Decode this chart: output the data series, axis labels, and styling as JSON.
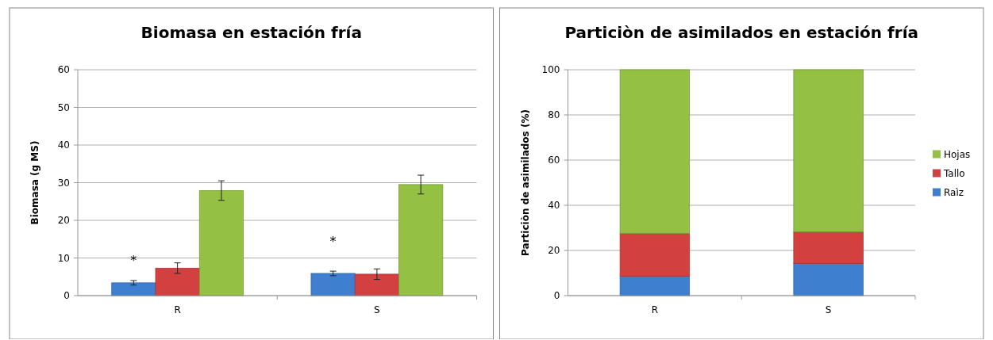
{
  "chart_data": [
    {
      "type": "bar",
      "title": "Biomasa en estación fría",
      "ylabel": "Biomasa (g MS)",
      "categories": [
        "R",
        "S"
      ],
      "series": [
        {
          "color": "#3f7fcf",
          "values": [
            3.4,
            5.9
          ],
          "errors": [
            0.6,
            0.6
          ]
        },
        {
          "color": "#d24040",
          "values": [
            7.3,
            5.7
          ],
          "errors": [
            1.4,
            1.4
          ]
        },
        {
          "color": "#94c044",
          "values": [
            27.9,
            29.5
          ],
          "errors": [
            2.6,
            2.5
          ]
        }
      ],
      "ylim": [
        0,
        60
      ],
      "yticks": [
        0,
        10,
        20,
        30,
        40,
        50,
        60
      ],
      "grid": "y",
      "legend": false,
      "annotations": [
        "*",
        "*"
      ]
    },
    {
      "type": "bar",
      "title": "Particiòn de asimilados en estación fría",
      "ylabel": "Particiòn de asimilados (%)",
      "categories": [
        "R",
        "S"
      ],
      "stacked": true,
      "series": [
        {
          "name": "Raìz",
          "color": "#3f7fcf",
          "values": [
            8.6,
            14.2
          ]
        },
        {
          "name": "Tallo",
          "color": "#d24040",
          "values": [
            19.0,
            14.1
          ]
        },
        {
          "name": "Hojas",
          "color": "#94c044",
          "values": [
            72.4,
            71.7
          ]
        }
      ],
      "ylim": [
        0,
        100
      ],
      "yticks": [
        0,
        20,
        40,
        60,
        80,
        100
      ],
      "grid": "y",
      "legend": "right"
    }
  ]
}
